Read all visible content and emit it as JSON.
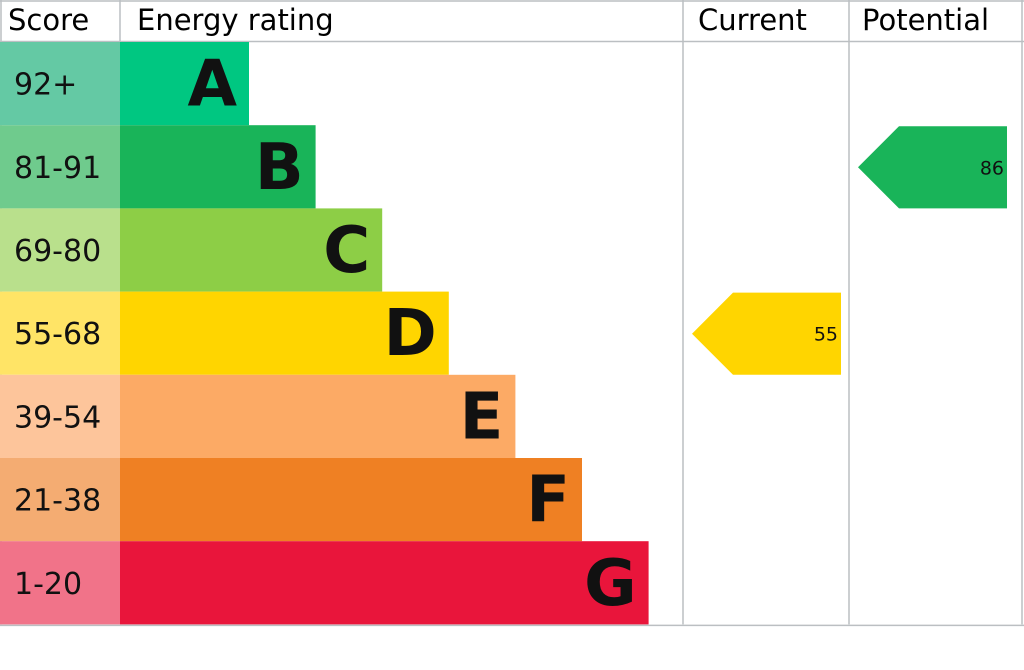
{
  "chart_data": {
    "type": "bar",
    "headers": {
      "score": "Score",
      "rating": "Energy rating",
      "current": "Current",
      "potential": "Potential"
    },
    "bands": [
      {
        "letter": "A",
        "range": "92+",
        "color": "#00c781",
        "light": "#64c9a4"
      },
      {
        "letter": "B",
        "range": "81-91",
        "color": "#19b459",
        "light": "#6fcb8d"
      },
      {
        "letter": "C",
        "range": "69-80",
        "color": "#8dce46",
        "light": "#b9e08c"
      },
      {
        "letter": "D",
        "range": "55-68",
        "color": "#ffd500",
        "light": "#ffe466"
      },
      {
        "letter": "E",
        "range": "39-54",
        "color": "#fcaa65",
        "light": "#fdc59b"
      },
      {
        "letter": "F",
        "range": "21-38",
        "color": "#ef8023",
        "light": "#f4ac72"
      },
      {
        "letter": "G",
        "range": "1-20",
        "color": "#e9153b",
        "light": "#f17389"
      }
    ],
    "current": {
      "value": "55",
      "band": "D",
      "color": "#ffd500"
    },
    "potential": {
      "value": "86",
      "band": "B",
      "color": "#19b459"
    }
  }
}
